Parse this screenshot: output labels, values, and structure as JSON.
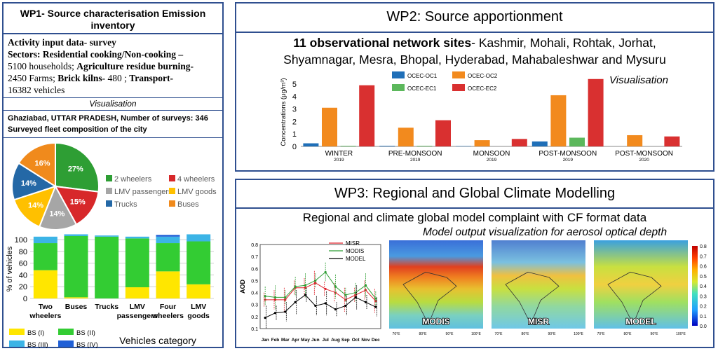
{
  "wp1": {
    "title_line1": "WP1- Source characterisation Emission",
    "title_line2": "inventory",
    "activity_title": "Activity input data- survey",
    "sectors_label": "Sectors: Residential cooking/Non-cooking –",
    "households": "5100 households;",
    "agri_label": "Agriculture residue burning-",
    "farms": "2450 Farms;",
    "brick_label": "Brick kilns",
    "brick_value": "- 480 ;",
    "transport_label": "Transport-",
    "vehicles": "16382 vehicles",
    "visualisation": "Visualisation",
    "location": "Ghaziabad, UTTAR PRADESH, Number of surveys: 346",
    "fleet_caption": "Surveyed fleet composition of the city",
    "pie": {
      "slices": [
        {
          "label": "2 wheelers",
          "value": 27,
          "text": "27%",
          "color": "#2e9e34"
        },
        {
          "label": "4 wheelers",
          "value": 15,
          "text": "15%",
          "color": "#d7282a"
        },
        {
          "label": "LMV passengers",
          "value": 14,
          "text": "14%",
          "color": "#a6a6a6"
        },
        {
          "label": "LMV goods",
          "value": 14,
          "text": "14%",
          "color": "#ffc000"
        },
        {
          "label": "Trucks",
          "value": 14,
          "text": "14%",
          "color": "#2468a6"
        },
        {
          "label": "Buses",
          "value": 16,
          "text": "16%",
          "color": "#f08a1c"
        }
      ]
    },
    "stack": {
      "ylabel": "% of vehicles",
      "yticks": [
        "0",
        "20",
        "40",
        "60",
        "80",
        "100"
      ],
      "xtitle": "Vehicles category",
      "categories": [
        "Two wheelers",
        "Buses",
        "Trucks",
        "LMV passengers",
        "Four wheelers",
        "LMV goods"
      ],
      "series": [
        {
          "name": "BS (I)",
          "color": "#ffe600",
          "values": [
            48,
            2,
            0,
            19,
            46,
            24
          ]
        },
        {
          "name": "BS (II)",
          "color": "#33cc33",
          "values": [
            46,
            104,
            105,
            83,
            48,
            73
          ]
        },
        {
          "name": "BS (III)",
          "color": "#3cb4e6",
          "values": [
            11,
            3,
            2,
            3,
            11,
            12
          ]
        },
        {
          "name": "BS (IV)",
          "color": "#1f5fd6",
          "values": [
            0,
            0,
            0,
            0,
            3,
            0
          ]
        }
      ]
    }
  },
  "wp2": {
    "title": "WP2: Source apportionment",
    "sites_bold": "11 observational network sites",
    "sites_line1": "- Kashmir, Mohali, Rohtak, Jorhat,",
    "sites_line2": "Shyamnagar, Mesra, Bhopal, Hyderabad, Mahabaleshwar and Mysuru",
    "visualisation": "Visualisation",
    "ylabel": "Concentrations (μg/m³)"
  },
  "wp3": {
    "title": "WP3: Regional and Global Climate Modelling",
    "subtitle": "Regional and climate global model complaint with CF format data",
    "caption": "Model output visualization for aerosol optical depth",
    "ylabel": "AOD",
    "legend": [
      "MISR",
      "MODIS",
      "MODEL"
    ],
    "maps": [
      "MODIS",
      "MISR",
      "MODEL"
    ],
    "lon_ticks": [
      "70°E",
      "80°E",
      "90°E",
      "100°E"
    ],
    "colorbar_ticks": [
      "0.8",
      "0.7",
      "0.6",
      "0.5",
      "0.4",
      "0.3",
      "0.2",
      "0.1",
      "0.0"
    ]
  },
  "chart_data": [
    {
      "type": "bar",
      "categories": [
        "WINTER 2019",
        "PRE-MONSOON 2019",
        "MONSOON 2019",
        "POST-MONSOON 2019",
        "POST-MONSOON 2020"
      ],
      "category_names": [
        "WINTER",
        "PRE-MONSOON",
        "MONSOON",
        "POST-MONSOON",
        "POST-MONSOON"
      ],
      "category_years": [
        "2019",
        "2019",
        "2019",
        "2019",
        "2020"
      ],
      "ylabel": "Concentrations (μg/m³)",
      "ylim": [
        0,
        5.5
      ],
      "yticks": [
        0,
        1,
        2,
        3,
        4,
        5
      ],
      "series": [
        {
          "name": "OCEC-OC1",
          "color": "#1f6fb8",
          "values": [
            0.25,
            0.05,
            0.03,
            0.4,
            0
          ]
        },
        {
          "name": "OCEC-OC2",
          "color": "#f28a1e",
          "values": [
            3.1,
            1.5,
            0.5,
            4.1,
            0.9
          ]
        },
        {
          "name": "OCEC-EC1",
          "color": "#5cb85c",
          "values": [
            0.05,
            0.05,
            0,
            0.7,
            0
          ]
        },
        {
          "name": "OCEC-EC2",
          "color": "#d93030",
          "values": [
            4.9,
            2.1,
            0.6,
            5.4,
            0.8
          ]
        }
      ]
    },
    {
      "type": "line",
      "x": [
        "Jan",
        "Feb",
        "Mar",
        "Apr",
        "May",
        "Jun",
        "Jul",
        "Aug",
        "Sep",
        "Oct",
        "Nov",
        "Dec"
      ],
      "ylabel": "AOD",
      "ylim": [
        0.1,
        0.8
      ],
      "yticks": [
        0.1,
        0.2,
        0.3,
        0.4,
        0.5,
        0.6,
        0.7,
        0.8
      ],
      "series": [
        {
          "name": "MISR",
          "color": "#e0202a",
          "values": [
            0.34,
            0.34,
            0.34,
            0.44,
            0.44,
            0.48,
            0.43,
            0.4,
            0.34,
            0.38,
            0.42,
            0.33
          ]
        },
        {
          "name": "MODIS",
          "color": "#2e9e34",
          "values": [
            0.37,
            0.36,
            0.36,
            0.45,
            0.46,
            0.5,
            0.57,
            0.45,
            0.38,
            0.4,
            0.46,
            0.35
          ]
        },
        {
          "name": "MODEL",
          "color": "#000000",
          "values": [
            0.19,
            0.23,
            0.24,
            0.32,
            0.38,
            0.29,
            0.31,
            0.26,
            0.29,
            0.36,
            0.32,
            0.28
          ]
        }
      ]
    }
  ]
}
